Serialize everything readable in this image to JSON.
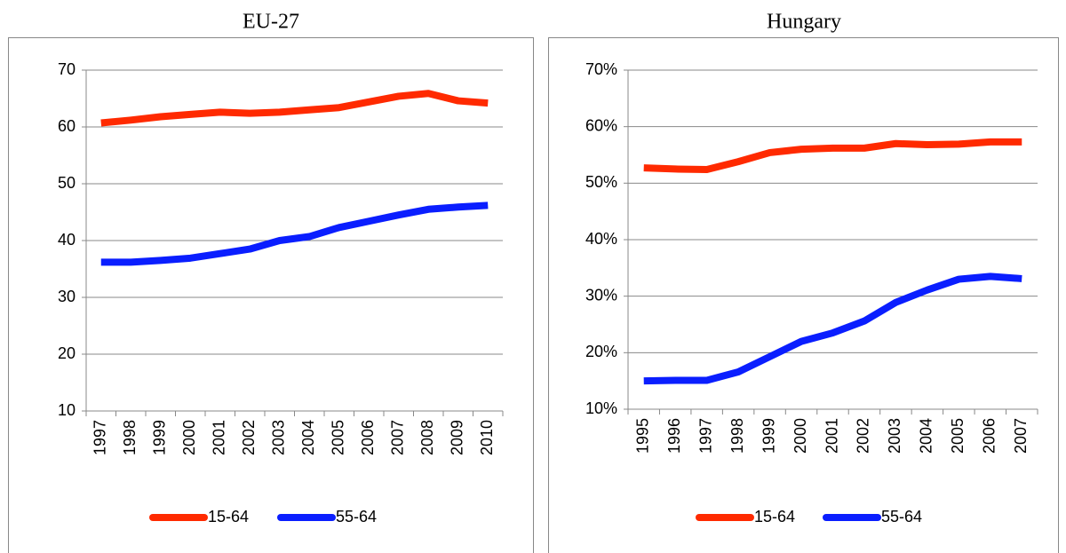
{
  "chart_data": [
    {
      "type": "line",
      "title": "EU-27",
      "categories": [
        "1997",
        "1998",
        "1999",
        "2000",
        "2001",
        "2002",
        "2003",
        "2004",
        "2005",
        "2006",
        "2007",
        "2008",
        "2009",
        "2010"
      ],
      "series": [
        {
          "name": "15-64",
          "color": "#ff2a00",
          "values": [
            60.7,
            61.2,
            61.8,
            62.2,
            62.6,
            62.4,
            62.6,
            63.0,
            63.4,
            64.4,
            65.4,
            65.9,
            64.6,
            64.2
          ]
        },
        {
          "name": "55-64",
          "color": "#0a1eff",
          "values": [
            36.2,
            36.2,
            36.5,
            36.9,
            37.7,
            38.5,
            40.0,
            40.7,
            42.3,
            43.4,
            44.5,
            45.5,
            45.9,
            46.2
          ]
        }
      ],
      "ylim": [
        10,
        70
      ],
      "yticks": [
        10,
        20,
        30,
        40,
        50,
        60,
        70
      ],
      "grid": true,
      "legend": "bottom"
    },
    {
      "type": "line",
      "title": "Hungary",
      "categories": [
        "1995",
        "1996",
        "1997",
        "1998",
        "1999",
        "2000",
        "2001",
        "2002",
        "2003",
        "2004",
        "2005",
        "2006",
        "2007"
      ],
      "series": [
        {
          "name": "15-64",
          "color": "#ff2a00",
          "values": [
            52.7,
            52.5,
            52.4,
            53.8,
            55.4,
            56.0,
            56.2,
            56.2,
            57.0,
            56.8,
            56.9,
            57.3,
            57.3
          ]
        },
        {
          "name": "55-64",
          "color": "#0a1eff",
          "values": [
            15.0,
            15.1,
            15.1,
            16.6,
            19.3,
            22.0,
            23.5,
            25.6,
            28.9,
            31.1,
            33.0,
            33.5,
            33.1
          ]
        }
      ],
      "ylim": [
        10,
        70
      ],
      "yticks": [
        {
          "value": 10,
          "label": "10%"
        },
        {
          "value": 20,
          "label": "20%"
        },
        {
          "value": 30,
          "label": "30%"
        },
        {
          "value": 40,
          "label": "40%"
        },
        {
          "value": 50,
          "label": "50%"
        },
        {
          "value": 60,
          "label": "60%"
        },
        {
          "value": 70,
          "label": "70%"
        }
      ],
      "grid": true,
      "legend": "bottom"
    }
  ]
}
